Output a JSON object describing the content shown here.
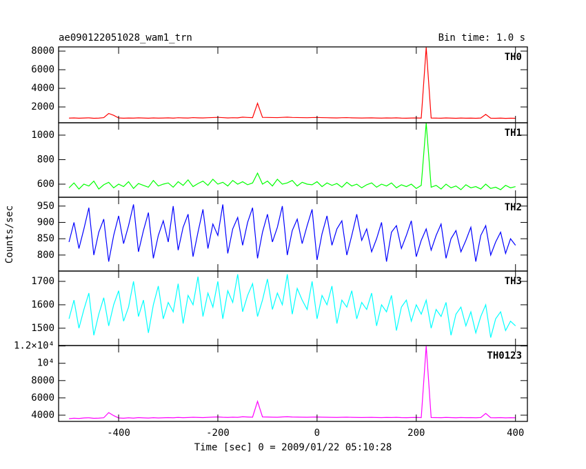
{
  "chart_data": {
    "type": "line",
    "title": "ae090122051028_wam1_trn",
    "subtitle": "Bin time: 1.0 s",
    "xlabel": "Time [sec] 0 = 2009/01/22 05:10:28",
    "ylabel": "Counts/sec",
    "xlim": [
      -521,
      424
    ],
    "xticks": [
      -400,
      -200,
      0,
      200,
      400
    ],
    "x": [
      -500,
      -490,
      -480,
      -470,
      -460,
      -450,
      -440,
      -430,
      -420,
      -410,
      -400,
      -390,
      -380,
      -370,
      -360,
      -350,
      -340,
      -330,
      -320,
      -310,
      -300,
      -290,
      -280,
      -270,
      -260,
      -250,
      -240,
      -230,
      -220,
      -210,
      -200,
      -190,
      -180,
      -170,
      -160,
      -150,
      -140,
      -130,
      -120,
      -110,
      -100,
      -90,
      -80,
      -70,
      -60,
      -50,
      -40,
      -30,
      -20,
      -10,
      0,
      10,
      20,
      30,
      40,
      50,
      60,
      70,
      80,
      90,
      100,
      110,
      120,
      130,
      140,
      150,
      160,
      170,
      180,
      190,
      200,
      210,
      220,
      230,
      240,
      250,
      260,
      270,
      280,
      290,
      300,
      310,
      320,
      330,
      340,
      350,
      360,
      370,
      380,
      390,
      400
    ],
    "series": [
      {
        "name": "TH0",
        "color": "#ff0000",
        "ylim": [
          300,
          8450
        ],
        "yticks": [
          2000,
          4000,
          6000,
          8000
        ],
        "values": [
          800,
          820,
          790,
          810,
          830,
          780,
          800,
          850,
          1300,
          1100,
          820,
          790,
          810,
          800,
          830,
          810,
          790,
          820,
          800,
          810,
          830,
          800,
          840,
          820,
          810,
          850,
          830,
          820,
          840,
          860,
          880,
          850,
          820,
          840,
          830,
          900,
          870,
          850,
          2400,
          880,
          870,
          860,
          850,
          880,
          900,
          870,
          860,
          850,
          840,
          860,
          870,
          850,
          840,
          830,
          820,
          840,
          850,
          830,
          820,
          810,
          820,
          830,
          810,
          800,
          820,
          810,
          830,
          800,
          790,
          810,
          820,
          800,
          8400,
          810,
          800,
          790,
          820,
          800,
          780,
          810,
          790,
          800,
          780,
          810,
          1200,
          790,
          780,
          800,
          770,
          790,
          780
        ]
      },
      {
        "name": "TH1",
        "color": "#00ff00",
        "ylim": [
          493,
          1101
        ],
        "yticks": [
          600,
          800,
          1000
        ],
        "values": [
          570,
          610,
          560,
          600,
          585,
          625,
          560,
          595,
          615,
          570,
          600,
          580,
          620,
          565,
          605,
          590,
          575,
          630,
          585,
          600,
          610,
          575,
          620,
          590,
          635,
          580,
          605,
          625,
          590,
          640,
          600,
          615,
          585,
          630,
          600,
          620,
          595,
          610,
          690,
          600,
          625,
          585,
          640,
          600,
          610,
          630,
          585,
          615,
          600,
          595,
          620,
          580,
          610,
          590,
          605,
          575,
          615,
          585,
          600,
          570,
          595,
          610,
          575,
          600,
          585,
          610,
          570,
          595,
          580,
          600,
          565,
          590,
          1100,
          575,
          590,
          560,
          600,
          570,
          585,
          555,
          595,
          570,
          580,
          560,
          600,
          565,
          575,
          555,
          590,
          570,
          580
        ]
      },
      {
        "name": "TH2",
        "color": "#0000ff",
        "ylim": [
          751,
          977
        ],
        "yticks": [
          800,
          850,
          900,
          950
        ],
        "values": [
          840,
          900,
          820,
          880,
          945,
          800,
          870,
          910,
          780,
          860,
          920,
          835,
          890,
          955,
          810,
          875,
          930,
          790,
          860,
          905,
          840,
          950,
          815,
          885,
          925,
          795,
          870,
          940,
          820,
          895,
          860,
          955,
          805,
          880,
          915,
          830,
          900,
          945,
          790,
          870,
          925,
          840,
          885,
          950,
          800,
          875,
          910,
          835,
          890,
          940,
          785,
          865,
          920,
          830,
          880,
          905,
          800,
          860,
          925,
          845,
          880,
          810,
          850,
          900,
          780,
          870,
          890,
          820,
          860,
          905,
          795,
          845,
          880,
          815,
          860,
          895,
          790,
          850,
          875,
          810,
          845,
          885,
          780,
          860,
          890,
          800,
          840,
          870,
          805,
          850,
          830
        ]
      },
      {
        "name": "TH3",
        "color": "#00ffff",
        "ylim": [
          1426,
          1744
        ],
        "yticks": [
          1500,
          1600,
          1700
        ],
        "values": [
          1540,
          1620,
          1500,
          1580,
          1650,
          1470,
          1560,
          1630,
          1510,
          1600,
          1660,
          1530,
          1590,
          1700,
          1550,
          1620,
          1480,
          1600,
          1680,
          1540,
          1610,
          1570,
          1690,
          1520,
          1640,
          1600,
          1720,
          1550,
          1650,
          1590,
          1700,
          1540,
          1660,
          1610,
          1730,
          1570,
          1640,
          1690,
          1550,
          1620,
          1710,
          1580,
          1650,
          1600,
          1730,
          1560,
          1670,
          1620,
          1580,
          1700,
          1540,
          1640,
          1600,
          1680,
          1520,
          1620,
          1590,
          1660,
          1540,
          1610,
          1580,
          1650,
          1510,
          1600,
          1570,
          1640,
          1490,
          1590,
          1620,
          1530,
          1600,
          1560,
          1620,
          1500,
          1580,
          1550,
          1610,
          1470,
          1560,
          1590,
          1510,
          1570,
          1480,
          1550,
          1600,
          1460,
          1540,
          1570,
          1490,
          1530,
          1510
        ]
      },
      {
        "name": "TH0123",
        "color": "#ff00ff",
        "ylim": [
          3280,
          12050
        ],
        "yticks": [
          4000,
          6000,
          8000,
          {
            "value": 10000,
            "label": "10⁴"
          },
          {
            "value": 12000,
            "label": "1.2×10⁴"
          }
        ],
        "values": [
          3600,
          3650,
          3620,
          3680,
          3700,
          3640,
          3660,
          3700,
          4300,
          3950,
          3680,
          3650,
          3700,
          3660,
          3720,
          3690,
          3670,
          3710,
          3680,
          3700,
          3720,
          3700,
          3740,
          3710,
          3730,
          3760,
          3740,
          3720,
          3750,
          3780,
          3800,
          3760,
          3740,
          3770,
          3750,
          3820,
          3790,
          3770,
          5600,
          3800,
          3790,
          3770,
          3760,
          3800,
          3820,
          3790,
          3780,
          3770,
          3760,
          3780,
          3790,
          3770,
          3760,
          3750,
          3740,
          3760,
          3770,
          3750,
          3740,
          3730,
          3740,
          3750,
          3730,
          3720,
          3740,
          3730,
          3750,
          3720,
          3710,
          3730,
          3740,
          3720,
          12000,
          3730,
          3720,
          3710,
          3740,
          3720,
          3700,
          3730,
          3710,
          3720,
          3700,
          3730,
          4200,
          3710,
          3700,
          3720,
          3690,
          3710,
          3700
        ]
      }
    ]
  }
}
